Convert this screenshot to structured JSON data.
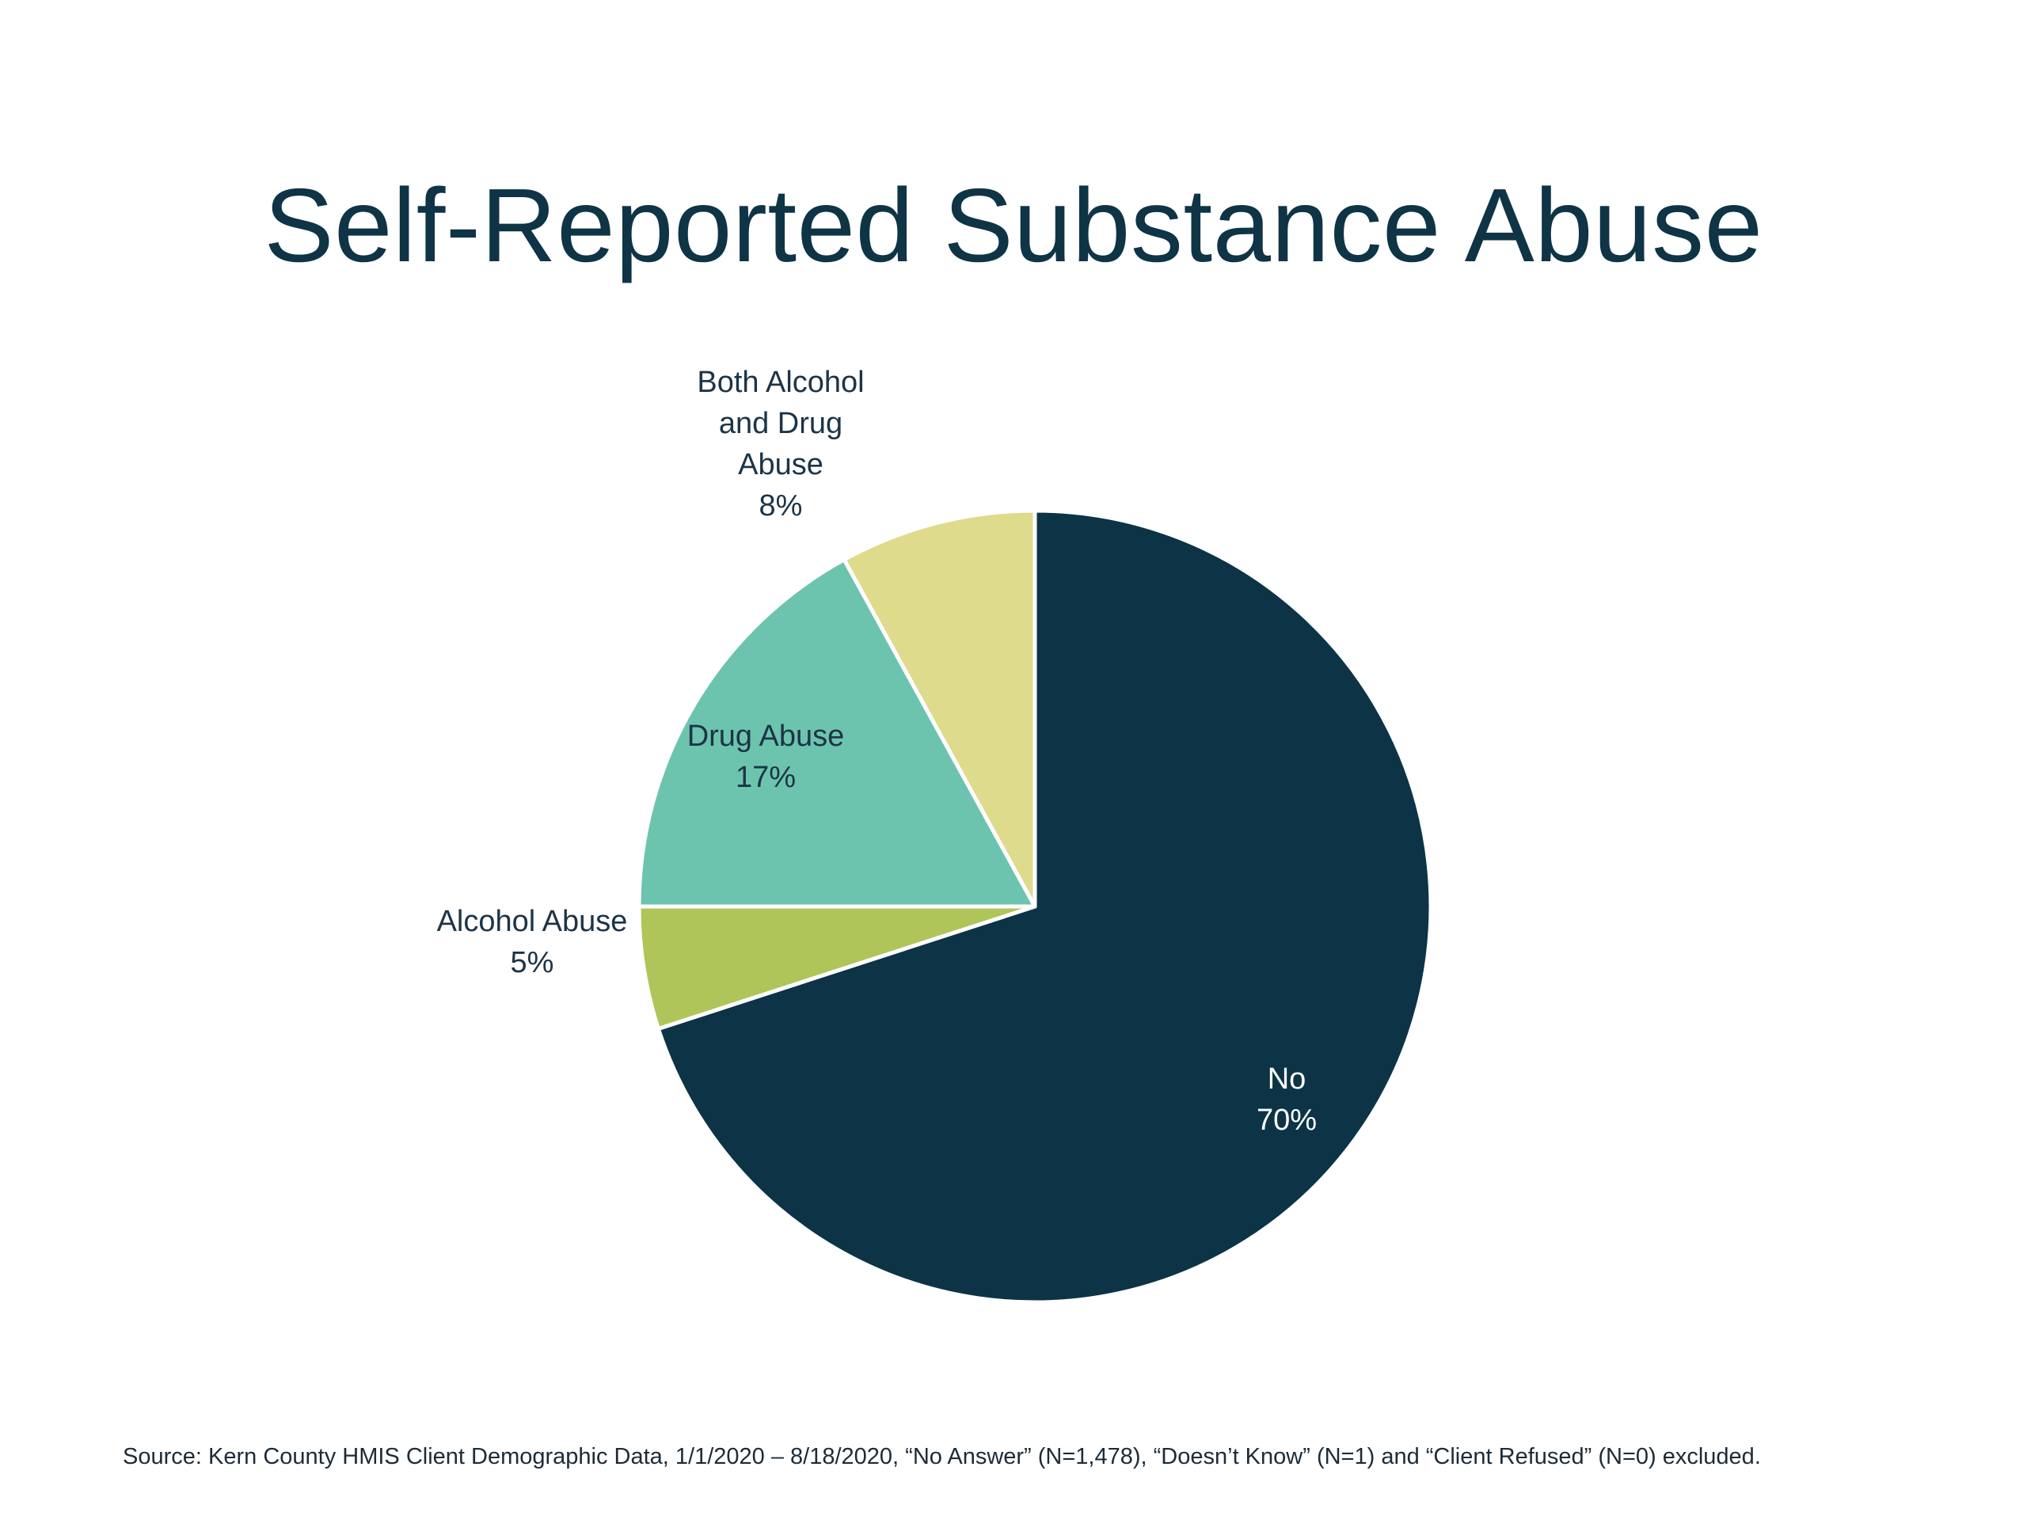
{
  "slide": {
    "title": "Self-Reported Substance Abuse",
    "source": "Source: Kern County HMIS Client Demographic Data, 1/1/2020 – 8/18/2020, “No Answer” (N=1,478), “Doesn’t Know” (N=1) and “Client Refused” (N=0) excluded."
  },
  "chart_data": {
    "type": "pie",
    "title": "Self-Reported Substance Abuse",
    "start_angle_deg": 0,
    "direction": "clockwise",
    "slices": [
      {
        "label": "No",
        "value": 70,
        "value_label": "70%",
        "color": "#0c3446",
        "label_color": "#ffffff",
        "label_lines": [
          "No",
          "70%"
        ],
        "label_position": "inside"
      },
      {
        "label": "Alcohol Abuse",
        "value": 5,
        "value_label": "5%",
        "color": "#afc55a",
        "label_color": "#1c3447",
        "label_lines": [
          "Alcohol Abuse",
          "5%"
        ],
        "label_position": "outside"
      },
      {
        "label": "Drug Abuse",
        "value": 17,
        "value_label": "17%",
        "color": "#6dc4ae",
        "label_color": "#1c3447",
        "label_lines": [
          "Drug Abuse",
          "17%"
        ],
        "label_position": "inside"
      },
      {
        "label": "Both Alcohol and Drug Abuse",
        "value": 8,
        "value_label": "8%",
        "color": "#dedb8d",
        "label_color": "#1c3447",
        "label_lines": [
          "Both Alcohol",
          "and Drug",
          "Abuse",
          "8%"
        ],
        "label_position": "outside"
      }
    ]
  }
}
